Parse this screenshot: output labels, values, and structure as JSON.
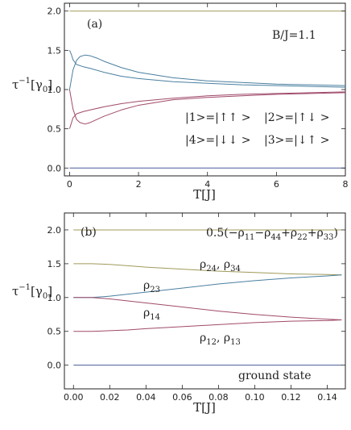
{
  "chart_data": [
    {
      "type": "line",
      "panel_label": "(a)",
      "annotation": "B/J=1.1",
      "state_labels": [
        "|1>=|↑↑ >",
        "|2>=|↑↓ >",
        "|4>=|↓↓ >",
        "|3>=|↓↑ >"
      ],
      "xlabel": "T[J]",
      "ylabel_main": "τ",
      "ylabel_sup": "−1",
      "ylabel_unit": "[γ",
      "ylabel_sub": "0",
      "ylabel_end": "]",
      "xlim": [
        -0.15,
        8
      ],
      "ylim": [
        -0.1,
        2.1
      ],
      "x_ticks": [
        0,
        2,
        4,
        6,
        8
      ],
      "x_tick_labels": [
        "0",
        "2",
        "4",
        "6",
        "8"
      ],
      "y_ticks": [
        0.0,
        0.5,
        1.0,
        1.5,
        2.0
      ],
      "y_tick_labels": [
        "0.0",
        "0.5",
        "1.0",
        "1.5",
        "2.0"
      ],
      "colors": {
        "olive": "#a09a5a",
        "teal": "#4a7fa0",
        "maroon": "#a04a6a",
        "navy": "#4a5a9a"
      },
      "series": [
        {
          "color": "olive",
          "x": [
            0,
            8
          ],
          "y": [
            2.0,
            2.0
          ]
        },
        {
          "color": "navy",
          "x": [
            0,
            8
          ],
          "y": [
            0.0,
            0.0
          ]
        },
        {
          "color": "teal",
          "x": [
            0,
            0.1,
            0.2,
            0.3,
            0.45,
            0.6,
            0.8,
            1,
            1.5,
            2,
            3,
            4,
            5,
            6,
            7,
            8
          ],
          "y": [
            1.0,
            1.25,
            1.37,
            1.42,
            1.44,
            1.43,
            1.4,
            1.36,
            1.28,
            1.22,
            1.15,
            1.11,
            1.09,
            1.07,
            1.06,
            1.05
          ]
        },
        {
          "color": "teal",
          "x": [
            0,
            0.05,
            0.1,
            0.2,
            0.4,
            0.6,
            1,
            1.5,
            2,
            3,
            4,
            5,
            6,
            7,
            8
          ],
          "y": [
            1.5,
            1.45,
            1.38,
            1.32,
            1.29,
            1.27,
            1.22,
            1.17,
            1.14,
            1.1,
            1.08,
            1.06,
            1.05,
            1.04,
            1.03
          ]
        },
        {
          "color": "maroon",
          "x": [
            0,
            0.05,
            0.1,
            0.2,
            0.4,
            0.6,
            1,
            1.5,
            2,
            3,
            4,
            5,
            6,
            7,
            8
          ],
          "y": [
            0.5,
            0.57,
            0.64,
            0.69,
            0.72,
            0.74,
            0.78,
            0.82,
            0.85,
            0.89,
            0.92,
            0.94,
            0.95,
            0.96,
            0.97
          ]
        },
        {
          "color": "maroon",
          "x": [
            0,
            0.1,
            0.2,
            0.3,
            0.45,
            0.6,
            0.8,
            1,
            1.5,
            2,
            3,
            4,
            5,
            6,
            7,
            8
          ],
          "y": [
            1.0,
            0.75,
            0.62,
            0.58,
            0.56,
            0.58,
            0.62,
            0.66,
            0.74,
            0.8,
            0.87,
            0.9,
            0.92,
            0.94,
            0.95,
            0.96
          ]
        }
      ]
    },
    {
      "type": "line",
      "panel_label": "(b)",
      "curve_labels": {
        "top": "0.5(−ρ",
        "rho24": "ρ",
        "rho24_sub": "24",
        "rho34": "ρ",
        "rho34_sub": "34",
        "rho23": "ρ",
        "rho23_sub": "23",
        "rho14": "ρ",
        "rho14_sub": "14",
        "rho12": "ρ",
        "rho12_sub": "12",
        "rho13": "ρ",
        "rho13_sub": "13",
        "ground": "ground state"
      },
      "top_label_parts": [
        {
          "t": "0.5(−ρ",
          "sub": "11"
        },
        {
          "t": "−ρ",
          "sub": "44"
        },
        {
          "t": "+ρ",
          "sub": "22"
        },
        {
          "t": "+ρ",
          "sub": "33"
        },
        {
          "t": ")",
          "sub": ""
        }
      ],
      "xlabel": "T[J]",
      "ylabel_main": "τ",
      "ylabel_sup": "−1",
      "ylabel_unit": "[γ",
      "ylabel_sub": "0",
      "ylabel_end": "]",
      "xlim": [
        -0.005,
        0.15
      ],
      "ylim": [
        -0.35,
        2.25
      ],
      "x_ticks": [
        0.0,
        0.02,
        0.04,
        0.06,
        0.08,
        0.1,
        0.12,
        0.14
      ],
      "x_tick_labels": [
        "0.00",
        "0.02",
        "0.04",
        "0.06",
        "0.08",
        "0.10",
        "0.12",
        "0.14"
      ],
      "y_ticks": [
        0.0,
        0.5,
        1.0,
        1.5,
        2.0
      ],
      "y_tick_labels": [
        "0.0",
        "0.5",
        "1.0",
        "1.5",
        "2.0"
      ],
      "series": [
        {
          "color": "olive",
          "x": [
            0,
            0.148
          ],
          "y": [
            2.0,
            2.0
          ]
        },
        {
          "color": "navy",
          "x": [
            0,
            0.148
          ],
          "y": [
            0.0,
            0.0
          ]
        },
        {
          "color": "olive",
          "x": [
            0,
            0.01,
            0.02,
            0.03,
            0.04,
            0.06,
            0.08,
            0.1,
            0.12,
            0.14,
            0.148
          ],
          "y": [
            1.5,
            1.5,
            1.49,
            1.47,
            1.45,
            1.42,
            1.39,
            1.37,
            1.35,
            1.34,
            1.335
          ]
        },
        {
          "color": "teal",
          "x": [
            0,
            0.01,
            0.02,
            0.03,
            0.04,
            0.06,
            0.08,
            0.1,
            0.12,
            0.14,
            0.148
          ],
          "y": [
            1.0,
            1.0,
            1.02,
            1.05,
            1.08,
            1.14,
            1.2,
            1.25,
            1.29,
            1.32,
            1.335
          ]
        },
        {
          "color": "maroon",
          "x": [
            0,
            0.01,
            0.02,
            0.03,
            0.04,
            0.06,
            0.08,
            0.1,
            0.12,
            0.14,
            0.148
          ],
          "y": [
            1.0,
            1.0,
            0.98,
            0.95,
            0.92,
            0.86,
            0.8,
            0.75,
            0.71,
            0.68,
            0.67
          ]
        },
        {
          "color": "maroon",
          "x": [
            0,
            0.01,
            0.02,
            0.03,
            0.04,
            0.06,
            0.08,
            0.1,
            0.12,
            0.14,
            0.148
          ],
          "y": [
            0.5,
            0.5,
            0.51,
            0.52,
            0.54,
            0.57,
            0.6,
            0.63,
            0.65,
            0.66,
            0.67
          ]
        }
      ]
    }
  ]
}
